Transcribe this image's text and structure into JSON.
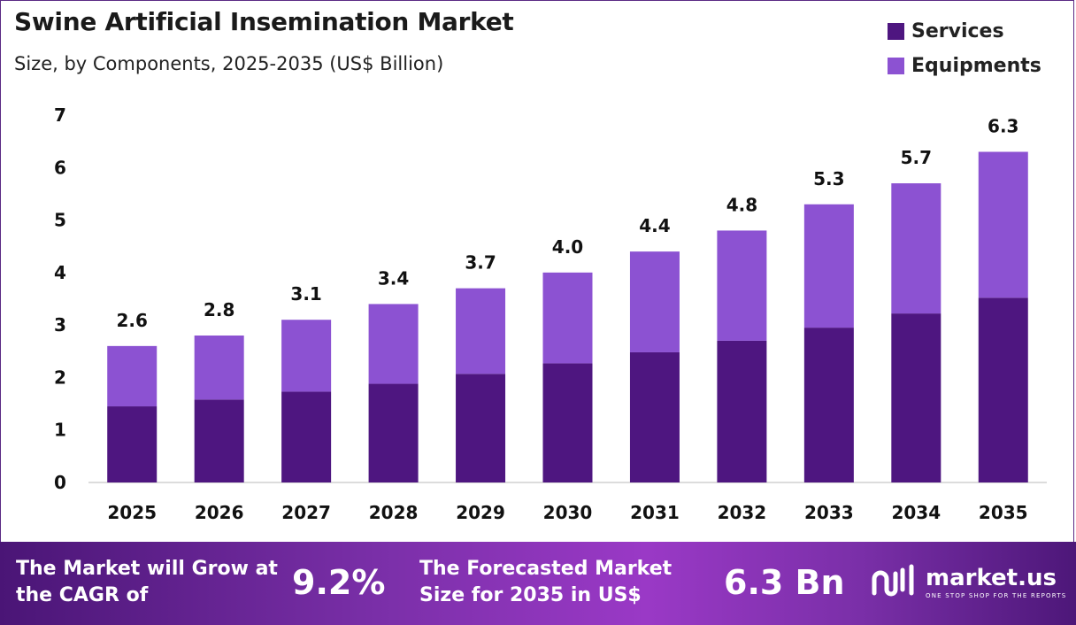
{
  "title": "Swine Artificial Insemination Market",
  "subtitle": "Size, by Components, 2025-2035 (US$ Billion)",
  "colors": {
    "services": "#4e1680",
    "equipments": "#8c52d2",
    "banner_start": "#4a1576",
    "banner_end": "#9a39c6"
  },
  "legend": [
    {
      "label": "Services",
      "color": "#4e1680"
    },
    {
      "label": "Equipments",
      "color": "#8c52d2"
    }
  ],
  "chart_data": {
    "type": "bar",
    "stacked": true,
    "categories": [
      "2025",
      "2026",
      "2027",
      "2028",
      "2029",
      "2030",
      "2031",
      "2032",
      "2033",
      "2034",
      "2035"
    ],
    "series": [
      {
        "name": "Services",
        "values": [
          1.45,
          1.58,
          1.73,
          1.88,
          2.07,
          2.27,
          2.48,
          2.7,
          2.95,
          3.22,
          3.52
        ]
      },
      {
        "name": "Equipments",
        "values": [
          1.15,
          1.22,
          1.37,
          1.52,
          1.63,
          1.73,
          1.92,
          2.1,
          2.35,
          2.48,
          2.78
        ]
      }
    ],
    "totals": [
      2.6,
      2.8,
      3.1,
      3.4,
      3.7,
      4.0,
      4.4,
      4.8,
      5.3,
      5.7,
      6.3
    ],
    "total_labels": [
      "2.6",
      "2.8",
      "3.1",
      "3.4",
      "3.7",
      "4.0",
      "4.4",
      "4.8",
      "5.3",
      "5.7",
      "6.3"
    ],
    "yticks": [
      "0",
      "1",
      "2",
      "3",
      "4",
      "5",
      "6",
      "7"
    ],
    "ylim": [
      0,
      7
    ],
    "grid": false,
    "legend_position": "top-right"
  },
  "banner": {
    "cagr_text": "The Market will Grow at the CAGR of",
    "cagr_value": "9.2%",
    "forecast_text": "The Forecasted Market Size for 2035 in US$",
    "forecast_value": "6.3 Bn",
    "logo_name": "market.us",
    "logo_tagline": "ONE STOP SHOP FOR THE REPORTS"
  }
}
